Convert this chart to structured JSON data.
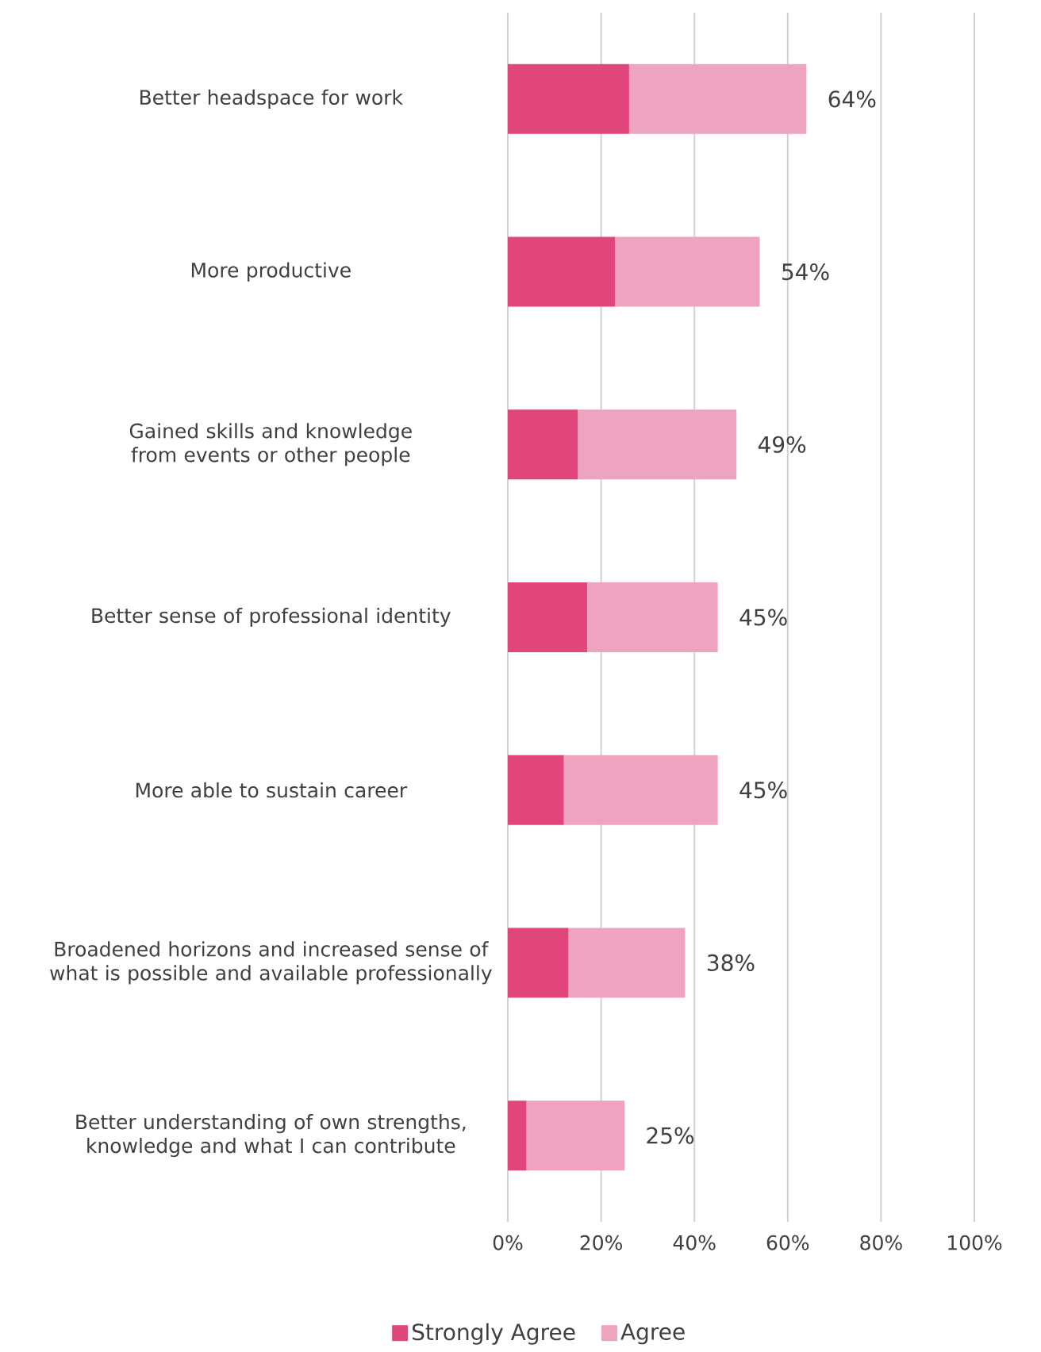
{
  "chart_data": {
    "type": "bar",
    "orientation": "horizontal",
    "stacked": true,
    "categories": [
      "Better headspace for work",
      "More productive",
      "Gained skills and knowledge from events or other people",
      "Better sense of professional identity",
      "More able to sustain career",
      "Broadened horizons and increased  sense of what is possible and available professionally",
      "Better understanding of own strengths, knowledge and what I can contribute"
    ],
    "series": [
      {
        "name": "Strongly Agree",
        "color": "#e0457b",
        "values": [
          26,
          23,
          15,
          17,
          12,
          13,
          4
        ]
      },
      {
        "name": "Agree",
        "color": "#eea3c0",
        "values": [
          38,
          31,
          34,
          28,
          33,
          25,
          21
        ]
      }
    ],
    "totals": [
      "64%",
      "54%",
      "49%",
      "45%",
      "45%",
      "38%",
      "25%"
    ],
    "xlim": [
      0,
      100
    ],
    "xticks": [
      {
        "value": 0,
        "label": "0%"
      },
      {
        "value": 20,
        "label": "20%"
      },
      {
        "value": 40,
        "label": "40%"
      },
      {
        "value": 60,
        "label": "60%"
      },
      {
        "value": 80,
        "label": "80%"
      },
      {
        "value": 100,
        "label": "100%"
      }
    ],
    "grid": "x",
    "legend": "bottom"
  }
}
